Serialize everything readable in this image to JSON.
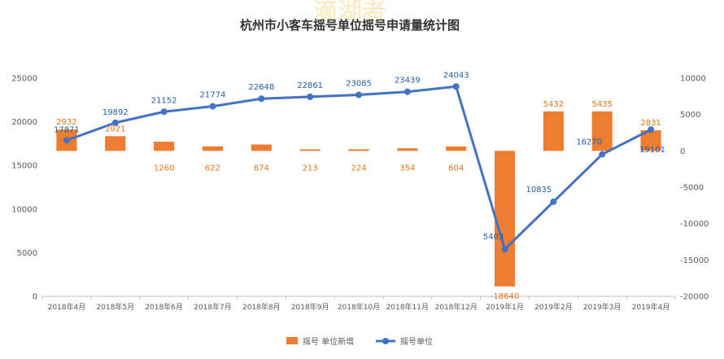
{
  "chart_data": {
    "type": "bar+line",
    "title": "杭州市小客车摇号单位摇号申请量统计图",
    "watermark_text": "滴湖者",
    "categories": [
      "2018年4月",
      "2018年5月",
      "2018年6月",
      "2018年7月",
      "2018年8月",
      "2018年9月",
      "2018年10月",
      "2018年11月",
      "2018年12月",
      "2019年1月",
      "2019年2月",
      "2019年3月",
      "2019年4月"
    ],
    "series": [
      {
        "name": "摇号 单位新增",
        "type": "bar",
        "axis": "right",
        "color": "#ed7d31",
        "values": [
          2932,
          2021,
          1260,
          622,
          874,
          213,
          224,
          354,
          604,
          -18640,
          5432,
          5435,
          2831
        ],
        "labels": [
          "2932",
          "2021",
          "1260",
          "622",
          "874",
          "213",
          "224",
          "354",
          "604",
          "-18640",
          "5432",
          "5435",
          "2831"
        ]
      },
      {
        "name": "摇号单位",
        "type": "line",
        "axis": "left",
        "color": "#4472c4",
        "values": [
          17871,
          19892,
          21152,
          21774,
          22648,
          22861,
          23085,
          23439,
          24043,
          5403,
          10835,
          16270,
          19101
        ],
        "labels": [
          "17871",
          "19892",
          "21152",
          "21774",
          "22648",
          "22861",
          "23085",
          "23439",
          "24043",
          "5403",
          "10835",
          "16270",
          "19101"
        ]
      }
    ],
    "y_left": {
      "min": 0,
      "max": 25000,
      "ticks": [
        "0",
        "5000",
        "10000",
        "15000",
        "20000",
        "25000"
      ]
    },
    "y_right": {
      "min": -20000,
      "max": 10000,
      "ticks": [
        "-20000",
        "-15000",
        "-10000",
        "-5000",
        "0",
        "5000",
        "10000"
      ]
    },
    "grid": false,
    "legend": "bottom"
  }
}
